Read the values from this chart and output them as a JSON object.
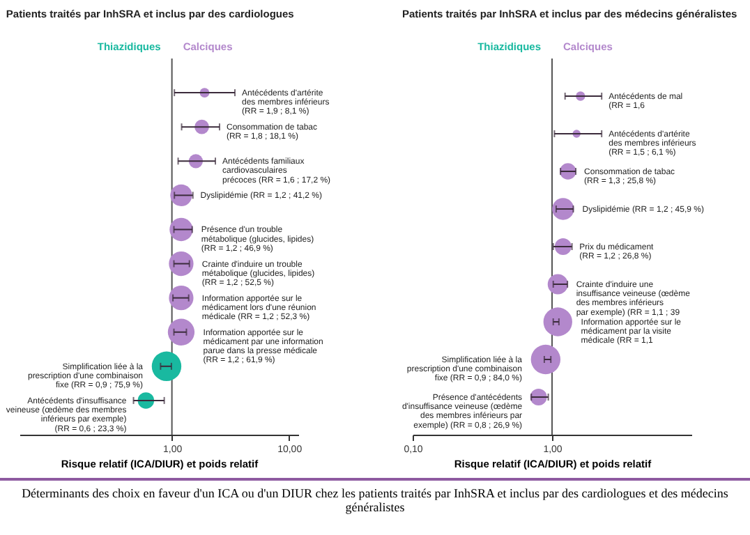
{
  "chart_data": [
    {
      "type": "bubble",
      "orientation": "horizontal",
      "title": "Patients traités par InhSRA et inclus par des cardiologues",
      "xlabel": "Risque relatif (ICA/DIUR) et poids relatif",
      "categories": [
        "Antécédents d'artérite\ndes membres inférieurs\n(RR = 1,9 ; 8,1 %)",
        "Consommation de tabac\n(RR = 1,8 ; 18,1 %)",
        "Antécédents familiaux\ncardiovasculaires\nprécoces (RR = 1,6 ; 17,2 %)",
        "Dyslipidémie (RR = 1,2 ; 41,2 %)",
        "Présence d'un trouble\nmétabolique (glucides, lipides)\n(RR = 1,2 ; 46,9 %)",
        "Crainte d'induire un trouble\nmétabolique (glucides, lipides)\n(RR = 1,2 ; 52,5 %)",
        "Information apportée sur le\nmédicament lors d'une réunion\nmédicale (RR = 1,2 ; 52,3 %)",
        "Information apportée sur le\nmédicament par une information\nparue dans la presse médicale\n(RR = 1,2 ; 61,9 %)",
        "Simplification liée à la\nprescription d'une combinaison\nfixe (RR = 0,9 ; 75,9 %)",
        "Antécédents d'insuffisance\nveineuse (œdème des membres\ninférieurs par exemple)\n(RR = 0,6 ; 23,3 %)"
      ],
      "series": [
        {
          "name": "Thiazidiques",
          "color": "#19b9a0",
          "values": [
            null,
            null,
            null,
            null,
            null,
            null,
            null,
            null,
            0.9,
            0.6
          ],
          "sizes": [
            null,
            null,
            null,
            null,
            null,
            null,
            null,
            null,
            1,
            0.307
          ],
          "errors": [
            null,
            null,
            null,
            null,
            null,
            null,
            null,
            null,
            [
              0.8,
              0.99
            ],
            [
              0.47,
              0.86
            ]
          ]
        },
        {
          "name": "Calciques",
          "color": "#b388cc",
          "values": [
            1.9,
            1.8,
            1.6,
            1.2,
            1.2,
            1.2,
            1.2,
            1.2,
            null,
            null
          ],
          "sizes": [
            0.107,
            0.238,
            0.227,
            0.543,
            0.618,
            0.692,
            0.689,
            0.816,
            null,
            null
          ],
          "errors": [
            [
              1.05,
              3.45
            ],
            [
              1.21,
              2.55
            ],
            [
              1.13,
              2.35
            ],
            [
              1.05,
              1.51
            ],
            [
              1.04,
              1.49
            ],
            [
              1.04,
              1.41
            ],
            [
              1.02,
              1.39
            ],
            [
              1.04,
              1.33
            ],
            null,
            null
          ]
        }
      ],
      "log": "x",
      "xlim": [
        0.05,
        12
      ],
      "xticks": [
        {
          "value": 1,
          "label": "1,00"
        },
        {
          "value": 10,
          "label": "10,00"
        }
      ],
      "ref_lines": [
        {
          "axis": "x",
          "value": 1
        }
      ],
      "legend": "top",
      "annotations": [
        "Déterminants des choix en faveur d'un ICA ou d'un DIUR chez les patients traités par InhSRA et inclus par des cardiologues et des médecins généralistes"
      ]
    },
    {
      "type": "bubble",
      "orientation": "horizontal",
      "title": "Patients traités par  InhSRA et inclus par des médecins généralistes",
      "xlabel": "Risque relatif (ICA/DIUR) et poids relatif",
      "categories": [
        "Antécédents de mal\n(RR = 1,6",
        "Antécédents d'artérite\ndes membres inférieurs\n(RR = 1,5 ; 6,1 %)",
        "Consommation de tabac\n(RR = 1,3 ; 25,8 %)",
        "Dyslipidémie (RR = 1,2 ; 45,9 %)",
        "Prix du médicament\n(RR = 1,2 ; 26,8 %)",
        "Crainte d'induire une\ninsuffisance veineuse (œdème\ndes membres inférieurs\npar exemple) (RR = 1,1 ; 39",
        "Information apportée sur le\nmédicament par la visite\nmédicale (RR = 1,1",
        "Simplification liée à la\nprescription d'une combinaison\nfixe (RR = 0,9 ; 84,0 %)",
        "Présence d'antécédents\nd'insuffisance veineuse (œdème\ndes membres inférieurs par\nexemple) (RR = 0,8 ; 26,9 %)"
      ],
      "series": [
        {
          "name": "Thiazidiques",
          "color": "#19b9a0",
          "values": [
            null,
            null,
            null,
            null,
            null,
            null,
            null,
            null,
            null
          ]
        },
        {
          "name": "Calciques",
          "color": "#b388cc",
          "values": [
            1.6,
            1.5,
            1.3,
            1.2,
            1.2,
            1.1,
            1.1,
            0.9,
            0.8
          ],
          "sizes": [
            0.1,
            0.073,
            0.307,
            0.546,
            0.319,
            0.47,
            0.95,
            1,
            0.32
          ],
          "errors": [
            [
              1.24,
              2.27
            ],
            [
              1.04,
              2.27
            ],
            [
              1.15,
              1.48
            ],
            [
              1.07,
              1.42
            ],
            [
              1.02,
              1.39
            ],
            [
              1.02,
              1.29
            ],
            [
              1.02,
              1.12
            ],
            [
              0.88,
              0.98
            ],
            [
              0.71,
              0.94
            ]
          ]
        }
      ],
      "log": "x",
      "xlim": [
        0.1,
        10
      ],
      "xticks": [
        {
          "value": 0.1,
          "label": "0,10"
        },
        {
          "value": 1,
          "label": "1,00"
        }
      ],
      "ref_lines": [
        {
          "axis": "x",
          "value": 1
        }
      ],
      "legend": "top"
    }
  ]
}
